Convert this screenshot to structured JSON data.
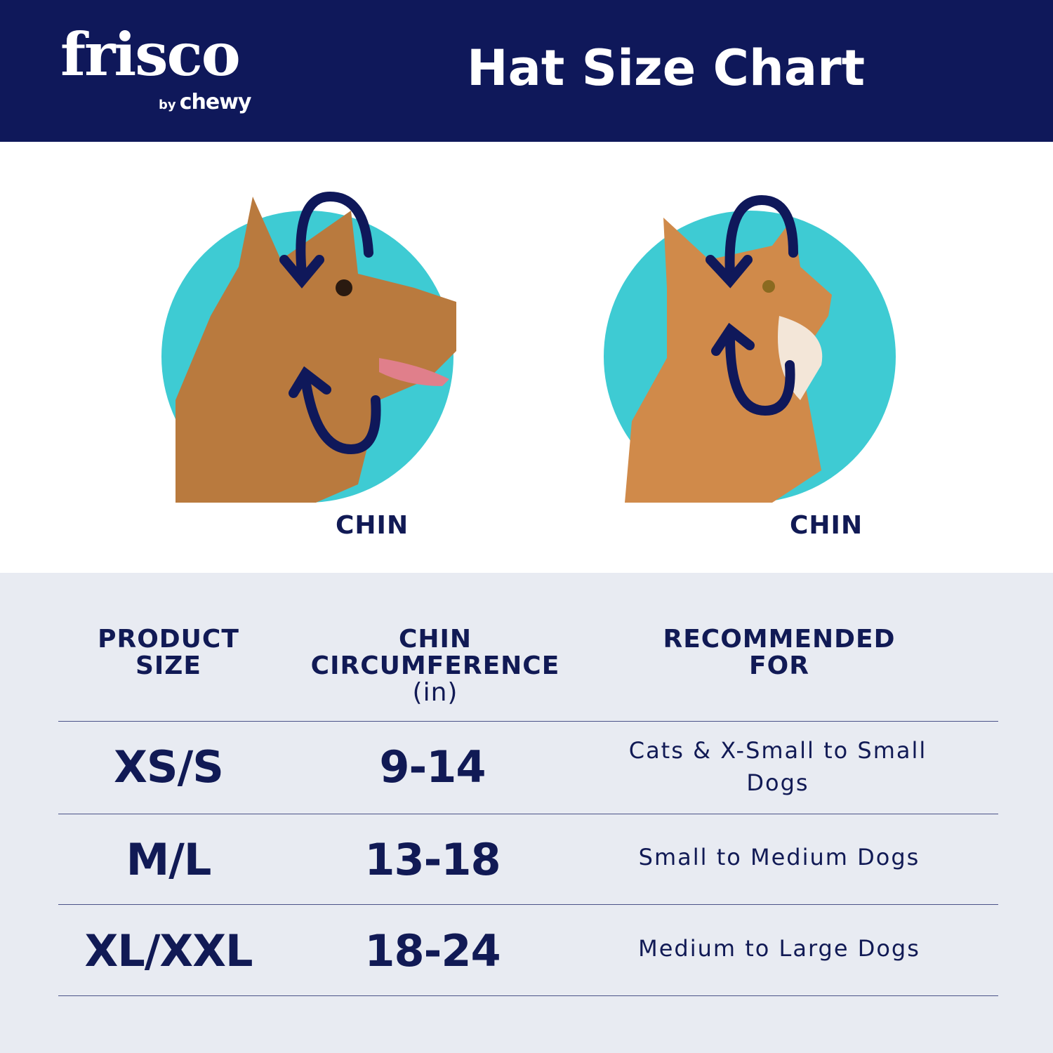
{
  "header": {
    "logo": {
      "brand": "frisco",
      "by": "by",
      "parent": "chewy"
    },
    "title": "Hat Size Chart"
  },
  "colors": {
    "navy": "#0f185a",
    "teal": "#3ecbd3",
    "table_bg": "#e8ebf2"
  },
  "illustrations": [
    {
      "subject": "dog",
      "label": "CHIN"
    },
    {
      "subject": "cat",
      "label": "CHIN"
    }
  ],
  "table": {
    "headers": {
      "size": "PRODUCT SIZE",
      "chin": "CHIN CIRCUMFERENCE",
      "chin_unit": "(in)",
      "recommended": "RECOMMENDED FOR"
    },
    "rows": [
      {
        "size": "XS/S",
        "chin": "9-14",
        "recommended": "Cats & X-Small to Small Dogs"
      },
      {
        "size": "M/L",
        "chin": "13-18",
        "recommended": "Small to Medium Dogs"
      },
      {
        "size": "XL/XXL",
        "chin": "18-24",
        "recommended": "Medium to Large Dogs"
      }
    ]
  }
}
